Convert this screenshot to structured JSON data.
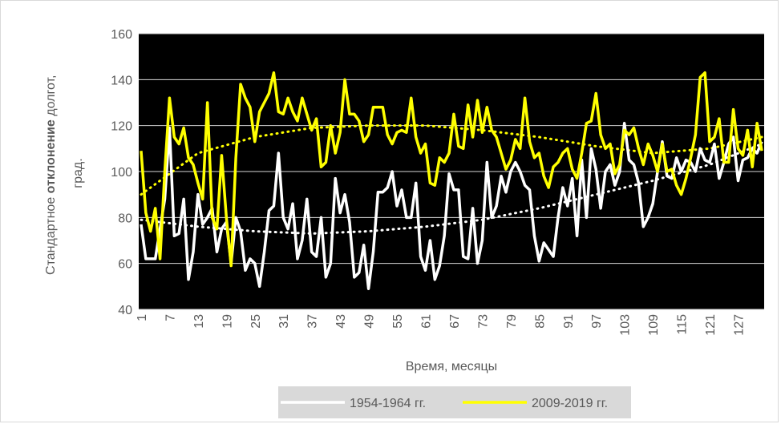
{
  "chart_data": {
    "type": "line",
    "x_label": "Время, месяцы",
    "y_label_parts": [
      "Стандартное",
      "отклонение",
      "долгот,",
      "град."
    ],
    "categories": [
      1,
      null,
      null,
      null,
      null,
      null,
      7,
      null,
      null,
      null,
      null,
      null,
      13,
      null,
      null,
      null,
      null,
      null,
      19,
      null,
      null,
      null,
      null,
      null,
      25,
      null,
      null,
      null,
      null,
      null,
      31,
      null,
      null,
      null,
      null,
      null,
      37,
      null,
      null,
      null,
      null,
      null,
      43,
      null,
      null,
      null,
      null,
      null,
      49,
      null,
      null,
      null,
      null,
      null,
      55,
      null,
      null,
      null,
      null,
      null,
      61,
      null,
      null,
      null,
      null,
      null,
      67,
      null,
      null,
      null,
      null,
      null,
      73,
      null,
      null,
      null,
      null,
      null,
      79,
      null,
      null,
      null,
      null,
      null,
      85,
      null,
      null,
      null,
      null,
      null,
      91,
      null,
      null,
      null,
      null,
      null,
      97,
      null,
      null,
      null,
      null,
      null,
      103,
      null,
      null,
      null,
      null,
      null,
      109,
      null,
      null,
      null,
      null,
      null,
      115,
      null,
      null,
      null,
      null,
      null,
      121,
      null,
      null,
      null,
      null,
      null,
      127,
      null,
      null,
      null,
      null,
      null
    ],
    "ylim": [
      40,
      160
    ],
    "yticks": [
      40,
      60,
      80,
      100,
      120,
      140,
      160
    ],
    "grid": true,
    "trend_x": [
      1,
      13,
      25,
      37,
      49,
      61,
      73,
      85,
      97,
      109,
      121,
      132
    ],
    "series": [
      {
        "name": "1954-1964 гг.",
        "color": "#ffffff",
        "values": [
          77,
          62,
          62,
          62,
          75,
          88,
          119,
          72,
          73,
          88,
          53,
          65,
          90,
          77,
          80,
          84,
          65,
          75,
          78,
          60,
          80,
          74,
          57,
          62,
          60,
          50,
          65,
          83,
          85,
          108,
          80,
          75,
          86,
          62,
          70,
          88,
          65,
          63,
          80,
          54,
          60,
          97,
          82,
          90,
          78,
          54,
          56,
          68,
          49,
          65,
          91,
          91,
          93,
          100,
          85,
          92,
          80,
          80,
          95,
          63,
          57,
          70,
          53,
          59,
          72,
          99,
          92,
          92,
          63,
          62,
          84,
          60,
          70,
          104,
          80,
          85,
          98,
          91,
          100,
          104,
          100,
          94,
          92,
          72,
          61,
          69,
          66,
          63,
          80,
          93,
          85,
          97,
          72,
          105,
          80,
          110,
          101,
          84,
          100,
          103,
          94,
          100,
          121,
          105,
          103,
          95,
          76,
          80,
          86,
          100,
          113,
          98,
          97,
          106,
          100,
          105,
          104,
          100,
          110,
          105,
          104,
          112,
          97,
          104,
          112,
          115,
          96,
          105,
          106,
          110,
          108,
          113
        ],
        "trend": [
          79,
          76,
          74,
          73,
          74,
          76,
          79,
          84,
          90,
          96,
          103,
          112
        ]
      },
      {
        "name": "2009-2019 гг.",
        "color": "#ffff00",
        "values": [
          109,
          82,
          74,
          84,
          62,
          100,
          132,
          115,
          112,
          119,
          106,
          103,
          95,
          88,
          130,
          80,
          75,
          107,
          80,
          59,
          106,
          138,
          132,
          128,
          113,
          126,
          130,
          134,
          143,
          126,
          125,
          132,
          126,
          122,
          132,
          125,
          118,
          123,
          102,
          104,
          120,
          108,
          117,
          140,
          125,
          125,
          122,
          113,
          116,
          128,
          128,
          128,
          116,
          112,
          117,
          118,
          117,
          132,
          115,
          108,
          112,
          95,
          94,
          106,
          104,
          108,
          125,
          111,
          110,
          129,
          115,
          131,
          117,
          128,
          118,
          115,
          108,
          101,
          105,
          114,
          110,
          132,
          113,
          106,
          108,
          98,
          93,
          102,
          104,
          108,
          110,
          101,
          97,
          108,
          121,
          122,
          134,
          116,
          110,
          112,
          99,
          103,
          118,
          116,
          119,
          110,
          103,
          112,
          107,
          100,
          112,
          100,
          101,
          94,
          90,
          97,
          106,
          116,
          141,
          143,
          113,
          115,
          123,
          104,
          104,
          127,
          110,
          107,
          118,
          102,
          121,
          109
        ],
        "trend": [
          90,
          108,
          115,
          119,
          120,
          120,
          118,
          115,
          111,
          108,
          110,
          115
        ]
      }
    ]
  }
}
